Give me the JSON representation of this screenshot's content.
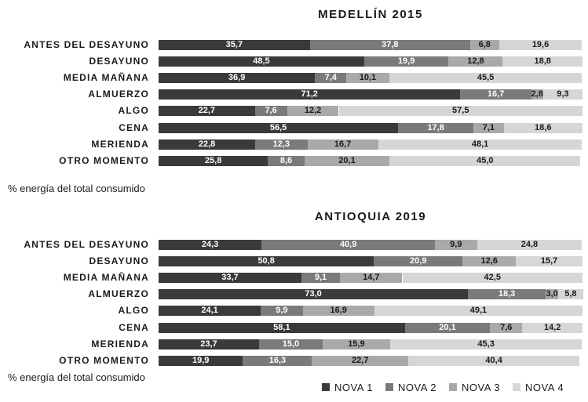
{
  "footnote": "% energía del total consumido",
  "chart_data": [
    {
      "type": "bar",
      "orientation": "horizontal",
      "stacked": true,
      "title": "MEDELLÍN 2015",
      "categories": [
        "ANTES DEL DESAYUNO",
        "DESAYUNO",
        "MEDIA MAÑANA",
        "ALMUERZO",
        "ALGO",
        "CENA",
        "MERIENDA",
        "OTRO MOMENTO"
      ],
      "series": [
        {
          "name": "NOVA 1",
          "values": [
            35.7,
            48.5,
            36.9,
            71.2,
            22.7,
            56.5,
            22.8,
            25.8
          ],
          "labels": [
            "35,7",
            "48,5",
            "36,9",
            "71,2",
            "22,7",
            "56,5",
            "22,8",
            "25,8"
          ]
        },
        {
          "name": "NOVA 2",
          "values": [
            37.8,
            19.9,
            7.4,
            16.7,
            7.6,
            17.8,
            12.3,
            8.6
          ],
          "labels": [
            "37,8",
            "19,9",
            "7,4",
            "16,7",
            "7,6",
            "17,8",
            "12,3",
            "8,6"
          ]
        },
        {
          "name": "NOVA 3",
          "values": [
            6.8,
            12.8,
            10.1,
            2.8,
            12.2,
            7.1,
            16.7,
            20.1
          ],
          "labels": [
            "6,8",
            "12,8",
            "10,1",
            "2,8",
            "12,2",
            "7,1",
            "16,7",
            "20,1"
          ]
        },
        {
          "name": "NOVA 4",
          "values": [
            19.6,
            18.8,
            45.5,
            9.3,
            57.5,
            18.6,
            48.1,
            45.0
          ],
          "labels": [
            "19,6",
            "18,8",
            "45,5",
            "9,3",
            "57,5",
            "18,6",
            "48,1",
            "45,0"
          ]
        }
      ]
    },
    {
      "type": "bar",
      "orientation": "horizontal",
      "stacked": true,
      "title": "ANTIOQUIA 2019",
      "categories": [
        "ANTES DEL DESAYUNO",
        "DESAYUNO",
        "MEDIA MAÑANA",
        "ALMUERZO",
        "ALGO",
        "CENA",
        "MERIENDA",
        "OTRO MOMENTO"
      ],
      "series": [
        {
          "name": "NOVA 1",
          "values": [
            24.3,
            50.8,
            33.7,
            73.0,
            24.1,
            58.1,
            23.7,
            19.9
          ],
          "labels": [
            "24,3",
            "50,8",
            "33,7",
            "73,0",
            "24,1",
            "58,1",
            "23,7",
            "19,9"
          ]
        },
        {
          "name": "NOVA 2",
          "values": [
            40.9,
            20.9,
            9.1,
            18.3,
            9.9,
            20.1,
            15.0,
            16.3
          ],
          "labels": [
            "40,9",
            "20,9",
            "9,1",
            "18,3",
            "9,9",
            "20,1",
            "15,0",
            "16,3"
          ]
        },
        {
          "name": "NOVA 3",
          "values": [
            9.9,
            12.6,
            14.7,
            3.0,
            16.9,
            7.6,
            15.9,
            22.7
          ],
          "labels": [
            "9,9",
            "12,6",
            "14,7",
            "3,0",
            "16,9",
            "7,6",
            "15,9",
            "22,7"
          ]
        },
        {
          "name": "NOVA 4",
          "values": [
            24.8,
            15.7,
            42.5,
            5.8,
            49.1,
            14.2,
            45.3,
            40.4
          ],
          "labels": [
            "24,8",
            "15,7",
            "42,5",
            "5,8",
            "49,1",
            "14,2",
            "45,3",
            "40,4"
          ]
        }
      ]
    }
  ],
  "legend": {
    "items": [
      {
        "label": "NOVA 1",
        "color": "#3a3a3a"
      },
      {
        "label": "NOVA 2",
        "color": "#7a7a7a"
      },
      {
        "label": "NOVA 3",
        "color": "#a9a9a9"
      },
      {
        "label": "NOVA 4",
        "color": "#d6d6d6"
      }
    ]
  },
  "colors": {
    "label_on_dark": "#ffffff",
    "label_on_light": "#1a1a1a"
  }
}
